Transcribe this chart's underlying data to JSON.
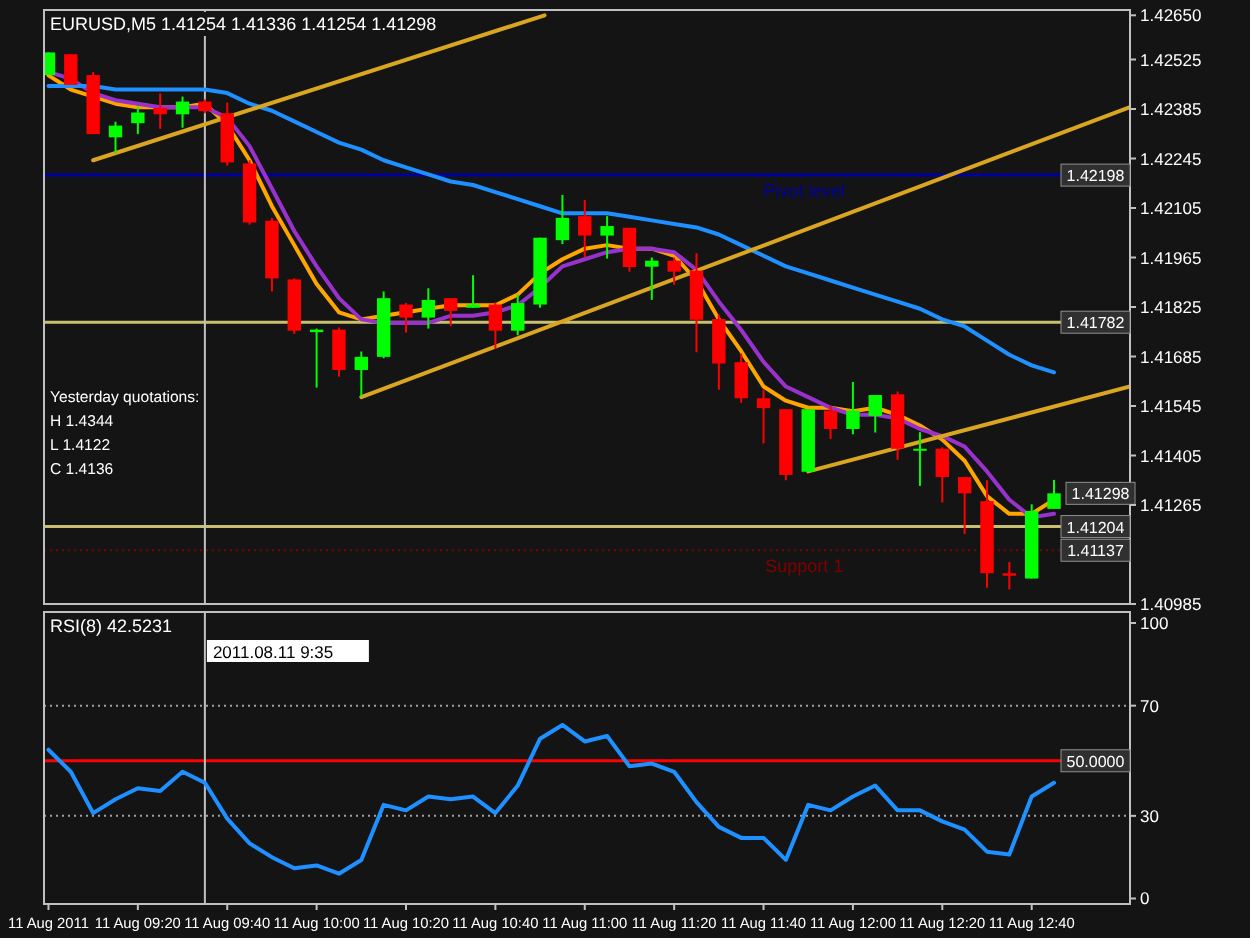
{
  "chart_data": [
    {
      "type": "candlestick",
      "title": "EURUSD,M5  1.41254 1.41336 1.41254 1.41298",
      "x": [
        "2011-08-11T09:00",
        "2011-08-11T09:05",
        "2011-08-11T09:10",
        "2011-08-11T09:15",
        "2011-08-11T09:20",
        "2011-08-11T09:25",
        "2011-08-11T09:30",
        "2011-08-11T09:35",
        "2011-08-11T09:40",
        "2011-08-11T09:45",
        "2011-08-11T09:50",
        "2011-08-11T09:55",
        "2011-08-11T10:00",
        "2011-08-11T10:05",
        "2011-08-11T10:10",
        "2011-08-11T10:15",
        "2011-08-11T10:20",
        "2011-08-11T10:25",
        "2011-08-11T10:30",
        "2011-08-11T10:35",
        "2011-08-11T10:40",
        "2011-08-11T10:45",
        "2011-08-11T10:50",
        "2011-08-11T10:55",
        "2011-08-11T11:00",
        "2011-08-11T11:05",
        "2011-08-11T11:10",
        "2011-08-11T11:15",
        "2011-08-11T11:20",
        "2011-08-11T11:25",
        "2011-08-11T11:30",
        "2011-08-11T11:35",
        "2011-08-11T11:40",
        "2011-08-11T11:45",
        "2011-08-11T11:50",
        "2011-08-11T11:55",
        "2011-08-11T12:00",
        "2011-08-11T12:05",
        "2011-08-11T12:10",
        "2011-08-11T12:15",
        "2011-08-11T12:20",
        "2011-08-11T12:25",
        "2011-08-11T12:30",
        "2011-08-11T12:35",
        "2011-08-11T12:40",
        "2011-08-11T12:45"
      ],
      "xlim": [
        "2011-08-11T08:59",
        "2011-08-11T13:02"
      ],
      "ylim": [
        1.40985,
        1.42665
      ],
      "yticks": [
        {
          "value": 1.4265,
          "label": "1.42650"
        },
        1.42525,
        1.42385,
        1.42245,
        1.42105,
        1.41965,
        1.41825,
        1.41685,
        1.41545,
        1.41405,
        1.41265,
        1.40985
      ],
      "tick_labels": "y",
      "series": [
        {
          "type": "line",
          "color": "#ffa500",
          "values": [
            1.4248,
            1.4244,
            1.4242,
            1.424,
            1.4239,
            1.4239,
            1.4239,
            1.424,
            1.4234,
            1.4224,
            1.4211,
            1.42,
            1.4189,
            1.4181,
            1.4179,
            1.418,
            1.4181,
            1.4182,
            1.4183,
            1.4183,
            1.4183,
            1.4186,
            1.4192,
            1.4196,
            1.4199,
            1.42,
            1.4199,
            1.4199,
            1.4197,
            1.419,
            1.4179,
            1.417,
            1.416,
            1.4156,
            1.4154,
            1.4154,
            1.4153,
            1.4154,
            1.4152,
            1.4149,
            1.4145,
            1.4139,
            1.4129,
            1.4124,
            1.4124,
            1.4128
          ]
        },
        {
          "type": "line",
          "color": "#9932cc",
          "values": [
            1.4249,
            1.4247,
            1.4243,
            1.4241,
            1.424,
            1.4239,
            1.4239,
            1.4239,
            1.4236,
            1.4228,
            1.4216,
            1.4204,
            1.4194,
            1.4185,
            1.4179,
            1.4178,
            1.4178,
            1.4178,
            1.418,
            1.418,
            1.4181,
            1.4183,
            1.4188,
            1.4194,
            1.4196,
            1.4198,
            1.4199,
            1.4199,
            1.4198,
            1.4193,
            1.4184,
            1.4176,
            1.4167,
            1.416,
            1.4157,
            1.4154,
            1.4152,
            1.4152,
            1.4151,
            1.4148,
            1.4146,
            1.4143,
            1.4136,
            1.4128,
            1.4123,
            1.4124
          ]
        },
        {
          "type": "line",
          "color": "#1e90ff",
          "values": [
            1.4245,
            1.4245,
            1.4245,
            1.4244,
            1.4244,
            1.4244,
            1.4244,
            1.4244,
            1.4243,
            1.424,
            1.4238,
            1.4235,
            1.4232,
            1.4229,
            1.4227,
            1.4224,
            1.4222,
            1.422,
            1.4218,
            1.4217,
            1.4215,
            1.4213,
            1.4211,
            1.4209,
            1.4209,
            1.4209,
            1.4208,
            1.4207,
            1.4206,
            1.4205,
            1.4203,
            1.42,
            1.4197,
            1.4194,
            1.4192,
            1.419,
            1.4188,
            1.4186,
            1.4184,
            1.4182,
            1.4179,
            1.4177,
            1.4173,
            1.4169,
            1.4166,
            1.4164
          ]
        },
        {
          "type": "line",
          "color": "#daa520",
          "x": [
            "2011-08-11T09:10",
            "2011-08-11T10:51"
          ],
          "values": [
            1.4224,
            1.4265
          ]
        },
        {
          "type": "line",
          "color": "#daa520",
          "x": [
            "2011-08-11T10:10",
            "2011-08-11T13:02"
          ],
          "values": [
            1.4157,
            1.4239
          ]
        },
        {
          "type": "line",
          "color": "#daa520",
          "x": [
            "2011-08-11T11:50",
            "2011-08-11T13:02"
          ],
          "values": [
            1.4136,
            1.416
          ]
        },
        {
          "ohlc": [
            [
              1.42481,
              1.42545,
              1.42481,
              1.42545
            ],
            [
              1.4254,
              1.4254,
              1.42453,
              1.42453
            ],
            [
              1.42481,
              1.4249,
              1.42314,
              1.42314
            ],
            [
              1.42305,
              1.42349,
              1.4226,
              1.42338
            ],
            [
              1.42345,
              1.42392,
              1.42314,
              1.42375
            ],
            [
              1.42388,
              1.42429,
              1.42329,
              1.4237
            ],
            [
              1.4237,
              1.4242,
              1.42332,
              1.42406
            ],
            [
              1.42406,
              1.42412,
              1.42373,
              1.42379
            ],
            [
              1.42373,
              1.42403,
              1.42225,
              1.42234
            ],
            [
              1.42231,
              1.4224,
              1.42058,
              1.42064
            ],
            [
              1.42069,
              1.42077,
              1.41869,
              1.41906
            ],
            [
              1.41903,
              1.41906,
              1.41749,
              1.41758
            ],
            [
              1.41754,
              1.41764,
              1.41597,
              1.41761
            ],
            [
              1.41761,
              1.41767,
              1.41628,
              1.41647
            ],
            [
              1.41647,
              1.41699,
              1.41572,
              1.41684
            ],
            [
              1.41684,
              1.41869,
              1.4168,
              1.4185
            ],
            [
              1.41832,
              1.41836,
              1.41753,
              1.41795
            ],
            [
              1.41795,
              1.41878,
              1.41764,
              1.41845
            ],
            [
              1.4185,
              1.4185,
              1.41771,
              1.41814
            ],
            [
              1.41823,
              1.41915,
              1.41823,
              1.41832
            ],
            [
              1.41832,
              1.41838,
              1.41706,
              1.41758
            ],
            [
              1.41758,
              1.4186,
              1.41745,
              1.41836
            ],
            [
              1.41832,
              1.42021,
              1.41823,
              1.42021
            ],
            [
              1.42014,
              1.42142,
              1.42003,
              1.42077
            ],
            [
              1.42082,
              1.42128,
              1.41965,
              1.42027
            ],
            [
              1.42027,
              1.42082,
              1.41962,
              1.42054
            ],
            [
              1.42049,
              1.42049,
              1.41925,
              1.41938
            ],
            [
              1.41939,
              1.41965,
              1.41845,
              1.41956
            ],
            [
              1.41956,
              1.41965,
              1.41888,
              1.41925
            ],
            [
              1.41928,
              1.41977,
              1.41697,
              1.41789
            ],
            [
              1.41791,
              1.41804,
              1.41591,
              1.41665
            ],
            [
              1.41669,
              1.41693,
              1.41554,
              1.41567
            ],
            [
              1.41567,
              1.41591,
              1.41439,
              1.41539
            ],
            [
              1.41536,
              1.41536,
              1.41335,
              1.4135
            ],
            [
              1.41359,
              1.41536,
              1.41359,
              1.41536
            ],
            [
              1.41532,
              1.41545,
              1.41452,
              1.4148
            ],
            [
              1.4148,
              1.41613,
              1.41465,
              1.41532
            ],
            [
              1.41517,
              1.41576,
              1.4147,
              1.41576
            ],
            [
              1.41578,
              1.41586,
              1.41393,
              1.41424
            ],
            [
              1.41421,
              1.41471,
              1.41319,
              1.41424
            ],
            [
              1.41424,
              1.41428,
              1.41272,
              1.41344
            ],
            [
              1.41344,
              1.41344,
              1.41183,
              1.41298
            ],
            [
              1.41276,
              1.41335,
              1.41031,
              1.41072
            ],
            [
              1.41072,
              1.41104,
              1.41026,
              1.41065
            ],
            [
              1.41057,
              1.41267,
              1.41057,
              1.41248
            ],
            [
              1.41254,
              1.41336,
              1.41254,
              1.41298
            ]
          ],
          "colors": [
            "#00ff00",
            "#ff0000",
            "#ff0000",
            "#00ff00",
            "#00ff00",
            "#ff0000",
            "#00ff00",
            "#ff0000",
            "#ff0000",
            "#ff0000",
            "#ff0000",
            "#ff0000",
            "#00ff00",
            "#ff0000",
            "#00ff00",
            "#00ff00",
            "#ff0000",
            "#00ff00",
            "#ff0000",
            "#00ff00",
            "#ff0000",
            "#00ff00",
            "#00ff00",
            "#00ff00",
            "#ff0000",
            "#00ff00",
            "#ff0000",
            "#00ff00",
            "#ff0000",
            "#ff0000",
            "#ff0000",
            "#ff0000",
            "#ff0000",
            "#ff0000",
            "#00ff00",
            "#ff0000",
            "#00ff00",
            "#00ff00",
            "#ff0000",
            "#00ff00",
            "#ff0000",
            "#ff0000",
            "#ff0000",
            "#ff0000",
            "#00ff00",
            "#00ff00"
          ]
        }
      ],
      "ref_lines": [
        {
          "axis": "y",
          "value": 1.42198,
          "label": "Pivot level",
          "color": "#0000a0",
          "line_style": "solid"
        },
        {
          "axis": "y",
          "value": 1.41782,
          "color": "#c8c070",
          "line_style": "solid"
        },
        {
          "axis": "y",
          "value": 1.41204,
          "color": "#c8c070",
          "line_style": "solid"
        },
        {
          "axis": "y",
          "value": 1.41137,
          "label": "Support 1",
          "color": "#800000",
          "line_style": "dotted"
        },
        {
          "axis": "x",
          "value": "2011-08-11T09:35",
          "color": "#c0c0c0",
          "line_style": "solid"
        }
      ],
      "annotations": [
        "Yesterday quotations:",
        "H 1.4344",
        "L 1.4122",
        "C 1.4136",
        {
          "text": "1.42198",
          "x": "2011-08-11T13:02",
          "y": 1.42198
        },
        {
          "text": "1.41782",
          "x": "2011-08-11T13:02",
          "y": 1.41782
        },
        {
          "text": "1.41298",
          "x": "2011-08-11T12:45",
          "y": 1.41298
        },
        {
          "text": "1.41204",
          "x": "2011-08-11T13:02",
          "y": 1.41204
        },
        {
          "text": "1.41137",
          "x": "2011-08-11T13:02",
          "y": 1.41137
        }
      ]
    },
    {
      "type": "line",
      "title": "RSI(8) 42.5231",
      "x": [
        "2011-08-11T09:00",
        "2011-08-11T09:05",
        "2011-08-11T09:10",
        "2011-08-11T09:15",
        "2011-08-11T09:20",
        "2011-08-11T09:25",
        "2011-08-11T09:30",
        "2011-08-11T09:35",
        "2011-08-11T09:40",
        "2011-08-11T09:45",
        "2011-08-11T09:50",
        "2011-08-11T09:55",
        "2011-08-11T10:00",
        "2011-08-11T10:05",
        "2011-08-11T10:10",
        "2011-08-11T10:15",
        "2011-08-11T10:20",
        "2011-08-11T10:25",
        "2011-08-11T10:30",
        "2011-08-11T10:35",
        "2011-08-11T10:40",
        "2011-08-11T10:45",
        "2011-08-11T10:50",
        "2011-08-11T10:55",
        "2011-08-11T11:00",
        "2011-08-11T11:05",
        "2011-08-11T11:10",
        "2011-08-11T11:15",
        "2011-08-11T11:20",
        "2011-08-11T11:25",
        "2011-08-11T11:30",
        "2011-08-11T11:35",
        "2011-08-11T11:40",
        "2011-08-11T11:45",
        "2011-08-11T11:50",
        "2011-08-11T11:55",
        "2011-08-11T12:00",
        "2011-08-11T12:05",
        "2011-08-11T12:10",
        "2011-08-11T12:15",
        "2011-08-11T12:20",
        "2011-08-11T12:25",
        "2011-08-11T12:30",
        "2011-08-11T12:35",
        "2011-08-11T12:40",
        "2011-08-11T12:45"
      ],
      "xlim": [
        "2011-08-11T08:59",
        "2011-08-11T13:02"
      ],
      "xticks": [
        {
          "value": "2011-08-11T09:00",
          "label": "11 Aug 2011"
        },
        {
          "value": "2011-08-11T09:20",
          "label": "11 Aug 09:20"
        },
        {
          "value": "2011-08-11T09:40",
          "label": "11 Aug 09:40"
        },
        {
          "value": "2011-08-11T10:00",
          "label": "11 Aug 10:00"
        },
        {
          "value": "2011-08-11T10:20",
          "label": "11 Aug 10:20"
        },
        {
          "value": "2011-08-11T10:40",
          "label": "11 Aug 10:40"
        },
        {
          "value": "2011-08-11T11:00",
          "label": "11 Aug 11:00"
        },
        {
          "value": "2011-08-11T11:20",
          "label": "11 Aug 11:20"
        },
        {
          "value": "2011-08-11T11:40",
          "label": "11 Aug 11:40"
        },
        {
          "value": "2011-08-11T12:00",
          "label": "11 Aug 12:00"
        },
        {
          "value": "2011-08-11T12:20",
          "label": "11 Aug 12:20"
        },
        {
          "value": "2011-08-11T12:40",
          "label": "11 Aug 12:40"
        }
      ],
      "ylim": [
        -2,
        104
      ],
      "yticks": [
        0,
        30,
        70,
        100
      ],
      "series": [
        {
          "color": "#1e90ff",
          "values": [
            54,
            46,
            31,
            36,
            40,
            39,
            46,
            42,
            29,
            20,
            15,
            11,
            12,
            9,
            14,
            34,
            32,
            37,
            36,
            37,
            31,
            41,
            58,
            63,
            57,
            59,
            48,
            49,
            46,
            35,
            26,
            22,
            22,
            14,
            34,
            32,
            37,
            41,
            32,
            32,
            28,
            25,
            17,
            16,
            37,
            42
          ]
        }
      ],
      "ref_lines": [
        {
          "axis": "y",
          "value": 70,
          "color": "#a0a0a0",
          "line_style": "dotted"
        },
        {
          "axis": "y",
          "value": 30,
          "color": "#a0a0a0",
          "line_style": "dotted"
        },
        {
          "axis": "y",
          "value": 50,
          "color": "#ff0000",
          "line_style": "solid"
        },
        {
          "axis": "x",
          "value": "2011-08-11T09:35",
          "label": "2011.08.11 9:35",
          "color": "#c0c0c0",
          "line_style": "solid"
        }
      ],
      "annotations": [
        {
          "text": "50.0000",
          "x": "2011-08-11T13:02",
          "y": 50
        }
      ]
    }
  ]
}
